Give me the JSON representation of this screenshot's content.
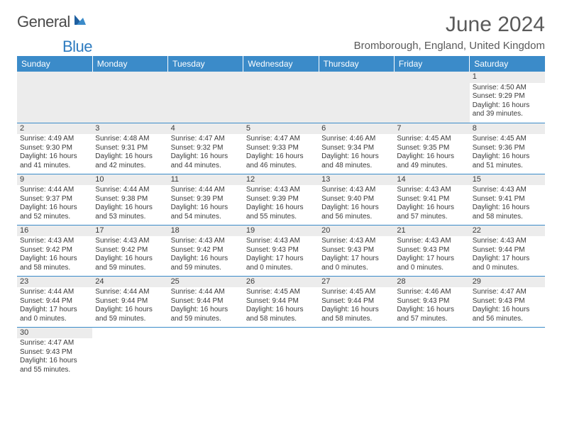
{
  "logo": {
    "part1": "General",
    "part2": "Blue"
  },
  "title": "June 2024",
  "subtitle": "Bromborough, England, United Kingdom",
  "colors": {
    "header_bg": "#3b8bc9",
    "header_fg": "#ffffff",
    "daynum_bg": "#ececec",
    "text": "#3a3a3a",
    "rule": "#3b8bc9"
  },
  "weekdays": [
    "Sunday",
    "Monday",
    "Tuesday",
    "Wednesday",
    "Thursday",
    "Friday",
    "Saturday"
  ],
  "weeks": [
    [
      null,
      null,
      null,
      null,
      null,
      null,
      {
        "n": "1",
        "sr": "Sunrise: 4:50 AM",
        "ss": "Sunset: 9:29 PM",
        "d1": "Daylight: 16 hours",
        "d2": "and 39 minutes."
      }
    ],
    [
      {
        "n": "2",
        "sr": "Sunrise: 4:49 AM",
        "ss": "Sunset: 9:30 PM",
        "d1": "Daylight: 16 hours",
        "d2": "and 41 minutes."
      },
      {
        "n": "3",
        "sr": "Sunrise: 4:48 AM",
        "ss": "Sunset: 9:31 PM",
        "d1": "Daylight: 16 hours",
        "d2": "and 42 minutes."
      },
      {
        "n": "4",
        "sr": "Sunrise: 4:47 AM",
        "ss": "Sunset: 9:32 PM",
        "d1": "Daylight: 16 hours",
        "d2": "and 44 minutes."
      },
      {
        "n": "5",
        "sr": "Sunrise: 4:47 AM",
        "ss": "Sunset: 9:33 PM",
        "d1": "Daylight: 16 hours",
        "d2": "and 46 minutes."
      },
      {
        "n": "6",
        "sr": "Sunrise: 4:46 AM",
        "ss": "Sunset: 9:34 PM",
        "d1": "Daylight: 16 hours",
        "d2": "and 48 minutes."
      },
      {
        "n": "7",
        "sr": "Sunrise: 4:45 AM",
        "ss": "Sunset: 9:35 PM",
        "d1": "Daylight: 16 hours",
        "d2": "and 49 minutes."
      },
      {
        "n": "8",
        "sr": "Sunrise: 4:45 AM",
        "ss": "Sunset: 9:36 PM",
        "d1": "Daylight: 16 hours",
        "d2": "and 51 minutes."
      }
    ],
    [
      {
        "n": "9",
        "sr": "Sunrise: 4:44 AM",
        "ss": "Sunset: 9:37 PM",
        "d1": "Daylight: 16 hours",
        "d2": "and 52 minutes."
      },
      {
        "n": "10",
        "sr": "Sunrise: 4:44 AM",
        "ss": "Sunset: 9:38 PM",
        "d1": "Daylight: 16 hours",
        "d2": "and 53 minutes."
      },
      {
        "n": "11",
        "sr": "Sunrise: 4:44 AM",
        "ss": "Sunset: 9:39 PM",
        "d1": "Daylight: 16 hours",
        "d2": "and 54 minutes."
      },
      {
        "n": "12",
        "sr": "Sunrise: 4:43 AM",
        "ss": "Sunset: 9:39 PM",
        "d1": "Daylight: 16 hours",
        "d2": "and 55 minutes."
      },
      {
        "n": "13",
        "sr": "Sunrise: 4:43 AM",
        "ss": "Sunset: 9:40 PM",
        "d1": "Daylight: 16 hours",
        "d2": "and 56 minutes."
      },
      {
        "n": "14",
        "sr": "Sunrise: 4:43 AM",
        "ss": "Sunset: 9:41 PM",
        "d1": "Daylight: 16 hours",
        "d2": "and 57 minutes."
      },
      {
        "n": "15",
        "sr": "Sunrise: 4:43 AM",
        "ss": "Sunset: 9:41 PM",
        "d1": "Daylight: 16 hours",
        "d2": "and 58 minutes."
      }
    ],
    [
      {
        "n": "16",
        "sr": "Sunrise: 4:43 AM",
        "ss": "Sunset: 9:42 PM",
        "d1": "Daylight: 16 hours",
        "d2": "and 58 minutes."
      },
      {
        "n": "17",
        "sr": "Sunrise: 4:43 AM",
        "ss": "Sunset: 9:42 PM",
        "d1": "Daylight: 16 hours",
        "d2": "and 59 minutes."
      },
      {
        "n": "18",
        "sr": "Sunrise: 4:43 AM",
        "ss": "Sunset: 9:42 PM",
        "d1": "Daylight: 16 hours",
        "d2": "and 59 minutes."
      },
      {
        "n": "19",
        "sr": "Sunrise: 4:43 AM",
        "ss": "Sunset: 9:43 PM",
        "d1": "Daylight: 17 hours",
        "d2": "and 0 minutes."
      },
      {
        "n": "20",
        "sr": "Sunrise: 4:43 AM",
        "ss": "Sunset: 9:43 PM",
        "d1": "Daylight: 17 hours",
        "d2": "and 0 minutes."
      },
      {
        "n": "21",
        "sr": "Sunrise: 4:43 AM",
        "ss": "Sunset: 9:43 PM",
        "d1": "Daylight: 17 hours",
        "d2": "and 0 minutes."
      },
      {
        "n": "22",
        "sr": "Sunrise: 4:43 AM",
        "ss": "Sunset: 9:44 PM",
        "d1": "Daylight: 17 hours",
        "d2": "and 0 minutes."
      }
    ],
    [
      {
        "n": "23",
        "sr": "Sunrise: 4:44 AM",
        "ss": "Sunset: 9:44 PM",
        "d1": "Daylight: 17 hours",
        "d2": "and 0 minutes."
      },
      {
        "n": "24",
        "sr": "Sunrise: 4:44 AM",
        "ss": "Sunset: 9:44 PM",
        "d1": "Daylight: 16 hours",
        "d2": "and 59 minutes."
      },
      {
        "n": "25",
        "sr": "Sunrise: 4:44 AM",
        "ss": "Sunset: 9:44 PM",
        "d1": "Daylight: 16 hours",
        "d2": "and 59 minutes."
      },
      {
        "n": "26",
        "sr": "Sunrise: 4:45 AM",
        "ss": "Sunset: 9:44 PM",
        "d1": "Daylight: 16 hours",
        "d2": "and 58 minutes."
      },
      {
        "n": "27",
        "sr": "Sunrise: 4:45 AM",
        "ss": "Sunset: 9:44 PM",
        "d1": "Daylight: 16 hours",
        "d2": "and 58 minutes."
      },
      {
        "n": "28",
        "sr": "Sunrise: 4:46 AM",
        "ss": "Sunset: 9:43 PM",
        "d1": "Daylight: 16 hours",
        "d2": "and 57 minutes."
      },
      {
        "n": "29",
        "sr": "Sunrise: 4:47 AM",
        "ss": "Sunset: 9:43 PM",
        "d1": "Daylight: 16 hours",
        "d2": "and 56 minutes."
      }
    ],
    [
      {
        "n": "30",
        "sr": "Sunrise: 4:47 AM",
        "ss": "Sunset: 9:43 PM",
        "d1": "Daylight: 16 hours",
        "d2": "and 55 minutes."
      },
      null,
      null,
      null,
      null,
      null,
      null
    ]
  ]
}
